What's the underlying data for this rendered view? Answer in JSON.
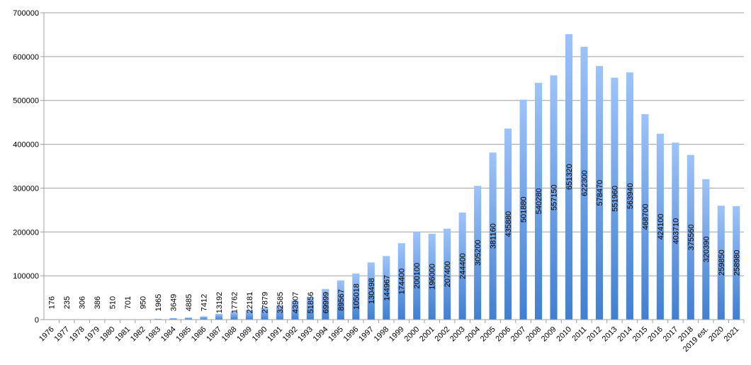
{
  "chart_data": {
    "type": "bar",
    "title": "",
    "xlabel": "",
    "ylabel": "",
    "ylim": [
      0,
      700000
    ],
    "yticks": [
      0,
      100000,
      200000,
      300000,
      400000,
      500000,
      600000,
      700000
    ],
    "grid": true,
    "legend": "none",
    "bar_color_top": "#9dc3fb",
    "bar_color_bottom": "#3f7fd4",
    "categories": [
      "1976",
      "1977",
      "1978",
      "1979",
      "1980",
      "1981",
      "1982",
      "1983",
      "1984",
      "1985",
      "1986",
      "1987",
      "1988",
      "1989",
      "1990",
      "1991",
      "1992",
      "1993",
      "1994",
      "1995",
      "1996",
      "1997",
      "1998",
      "1999",
      "2000",
      "2001",
      "2002",
      "2003",
      "2004",
      "2005",
      "2006",
      "2007",
      "2008",
      "2009",
      "2010",
      "2011",
      "2012",
      "2013",
      "2014",
      "2015",
      "2016",
      "2017",
      "2018",
      "2019 est.",
      "2020",
      "2021"
    ],
    "values": [
      176,
      235,
      306,
      386,
      510,
      701,
      950,
      1965,
      3649,
      4885,
      7412,
      13192,
      17762,
      22181,
      27879,
      32585,
      43907,
      51856,
      69999,
      89567,
      105018,
      130498,
      144967,
      174400,
      200100,
      196000,
      207400,
      244400,
      305200,
      381160,
      435880,
      501880,
      540280,
      557150,
      651320,
      622300,
      578470,
      551960,
      563940,
      468700,
      424100,
      403710,
      375560,
      320390,
      259850,
      258980
    ]
  }
}
